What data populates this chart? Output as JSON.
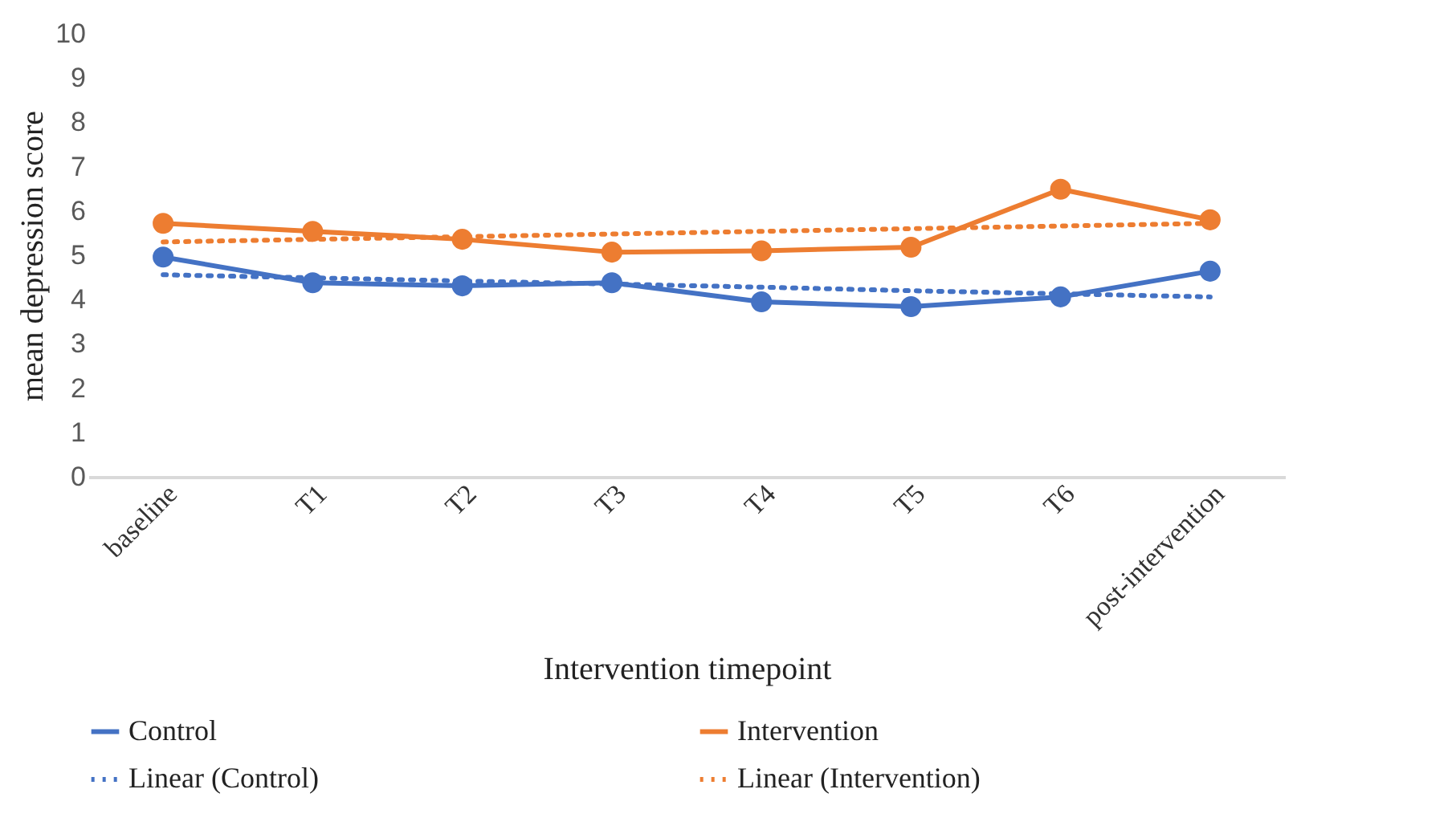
{
  "chart_data": {
    "type": "line",
    "xlabel": "Intervention timepoint",
    "ylabel": "mean depression score",
    "categories": [
      "baseline",
      "T1",
      "T2",
      "T3",
      "T4",
      "T5",
      "T6",
      "post-intervention"
    ],
    "ylim": [
      0,
      10
    ],
    "yticks": [
      0,
      1,
      2,
      3,
      4,
      5,
      6,
      7,
      8,
      9,
      10
    ],
    "grid": false,
    "legend": "bottom",
    "series": [
      {
        "name": "Control",
        "color": "#4472c4",
        "marker": "circle",
        "line_style": "solid",
        "values": [
          4.96,
          4.38,
          4.31,
          4.38,
          3.95,
          3.84,
          4.06,
          4.64
        ]
      },
      {
        "name": "Intervention",
        "color": "#ed7d31",
        "marker": "circle",
        "line_style": "solid",
        "values": [
          5.72,
          5.54,
          5.36,
          5.07,
          5.1,
          5.18,
          6.49,
          5.8
        ]
      },
      {
        "name": "Linear (Control)",
        "color": "#4472c4",
        "marker": "none",
        "line_style": "dotted",
        "values": [
          4.56,
          4.49,
          4.42,
          4.35,
          4.28,
          4.2,
          4.13,
          4.06
        ]
      },
      {
        "name": "Linear (Intervention)",
        "color": "#ed7d31",
        "marker": "none",
        "line_style": "dotted",
        "values": [
          5.3,
          5.36,
          5.42,
          5.48,
          5.54,
          5.6,
          5.66,
          5.72
        ]
      }
    ]
  }
}
